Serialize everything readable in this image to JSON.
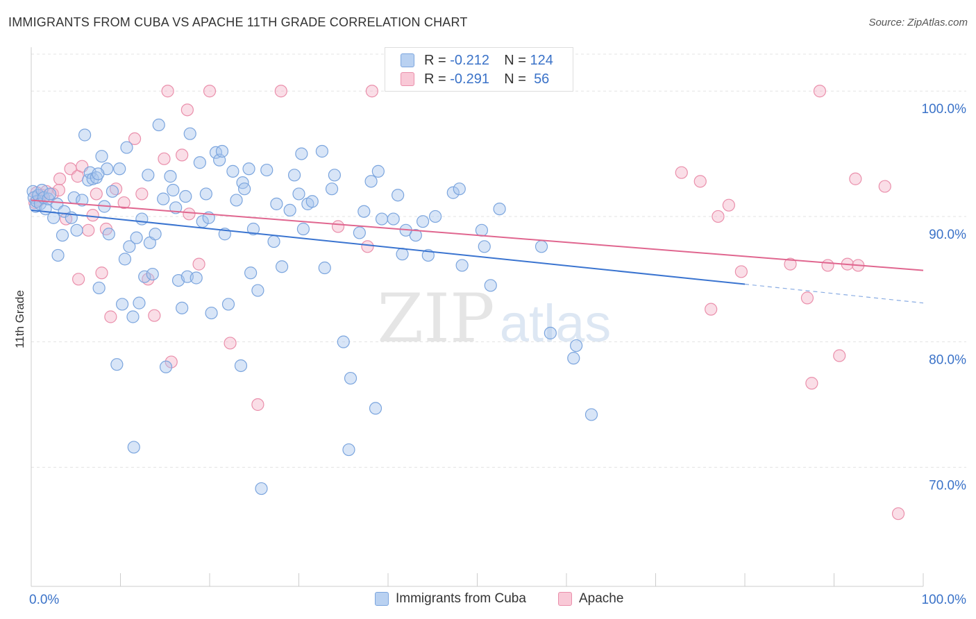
{
  "header": {
    "title": "IMMIGRANTS FROM CUBA VS APACHE 11TH GRADE CORRELATION CHART",
    "source": "Source: ZipAtlas.com"
  },
  "watermark": {
    "zip": "ZIP",
    "atlas": "atlas"
  },
  "legend": {
    "rows": [
      {
        "r_label": "R =",
        "r_value": "-0.212",
        "n_label": "N =",
        "n_value": "124"
      },
      {
        "r_label": "R =",
        "r_value": "-0.291",
        "n_label": "N =",
        "n_value": "56"
      }
    ]
  },
  "bottom_legend": {
    "series1": "Immigrants from Cuba",
    "series2": "Apache"
  },
  "colors": {
    "blue_fill": "#a9c6ee",
    "blue_stroke": "#7ba5de",
    "blue_line": "#3a74d0",
    "pink_fill": "#f5b6c9",
    "pink_stroke": "#ea8fab",
    "pink_line": "#e0668f",
    "tick_text": "#3a72c8",
    "grid": "#e3e3e3"
  },
  "chart_data": {
    "type": "scatter",
    "ylabel": "11th Grade",
    "xlabel": "",
    "xlim": [
      0,
      100
    ],
    "ylim": [
      60.5,
      103.5
    ],
    "x_tick_labels": [
      "0.0%",
      "100.0%"
    ],
    "y_ticks": [
      70,
      80,
      90,
      100
    ],
    "y_tick_labels": [
      "70.0%",
      "80.0%",
      "90.0%",
      "100.0%"
    ],
    "grid": true,
    "series": [
      {
        "name": "Immigrants from Cuba",
        "color": "#a9c6ee",
        "trend": {
          "x0": 0,
          "y0": 90.5,
          "x1": 80,
          "y1": 84.6,
          "dashed_to_x": 100,
          "dashed_to_y": 83.1
        },
        "points": [
          [
            0.2,
            92.0
          ],
          [
            0.3,
            91.5
          ],
          [
            0.5,
            90.8
          ],
          [
            0.6,
            91.2
          ],
          [
            0.8,
            91.7
          ],
          [
            1.0,
            91.0
          ],
          [
            1.2,
            92.1
          ],
          [
            1.4,
            91.5
          ],
          [
            1.6,
            90.6
          ],
          [
            1.9,
            91.4
          ],
          [
            2.1,
            91.8
          ],
          [
            2.5,
            89.9
          ],
          [
            2.9,
            91.0
          ],
          [
            3.0,
            86.9
          ],
          [
            3.5,
            88.5
          ],
          [
            3.7,
            90.4
          ],
          [
            4.5,
            89.9
          ],
          [
            4.8,
            91.5
          ],
          [
            5.1,
            88.9
          ],
          [
            5.7,
            91.3
          ],
          [
            6.0,
            96.5
          ],
          [
            6.4,
            92.9
          ],
          [
            6.6,
            93.5
          ],
          [
            6.9,
            93.0
          ],
          [
            7.3,
            93.1
          ],
          [
            7.6,
            84.3
          ],
          [
            7.9,
            94.8
          ],
          [
            8.2,
            90.8
          ],
          [
            8.5,
            93.8
          ],
          [
            8.7,
            88.6
          ],
          [
            9.1,
            92.0
          ],
          [
            9.6,
            78.2
          ],
          [
            9.9,
            93.8
          ],
          [
            10.2,
            83.0
          ],
          [
            10.5,
            86.6
          ],
          [
            10.7,
            95.5
          ],
          [
            11.0,
            87.6
          ],
          [
            11.4,
            82.0
          ],
          [
            11.8,
            88.3
          ],
          [
            12.1,
            83.1
          ],
          [
            12.4,
            89.8
          ],
          [
            12.7,
            85.2
          ],
          [
            13.1,
            93.3
          ],
          [
            13.3,
            87.9
          ],
          [
            13.6,
            85.4
          ],
          [
            13.9,
            88.6
          ],
          [
            14.3,
            97.3
          ],
          [
            14.8,
            91.4
          ],
          [
            15.1,
            78.0
          ],
          [
            15.6,
            93.2
          ],
          [
            15.9,
            92.1
          ],
          [
            16.2,
            90.7
          ],
          [
            16.5,
            84.9
          ],
          [
            16.9,
            82.7
          ],
          [
            17.3,
            91.6
          ],
          [
            17.5,
            85.2
          ],
          [
            17.8,
            96.6
          ],
          [
            18.5,
            85.1
          ],
          [
            18.9,
            94.3
          ],
          [
            19.2,
            89.6
          ],
          [
            19.6,
            91.8
          ],
          [
            19.9,
            89.9
          ],
          [
            20.2,
            82.3
          ],
          [
            20.7,
            95.1
          ],
          [
            21.1,
            94.5
          ],
          [
            21.4,
            95.2
          ],
          [
            21.7,
            88.6
          ],
          [
            22.1,
            83.0
          ],
          [
            22.6,
            93.6
          ],
          [
            23.0,
            91.3
          ],
          [
            23.5,
            78.1
          ],
          [
            23.7,
            92.7
          ],
          [
            23.9,
            92.2
          ],
          [
            24.4,
            93.8
          ],
          [
            24.6,
            85.5
          ],
          [
            24.9,
            89.0
          ],
          [
            25.4,
            84.1
          ],
          [
            25.8,
            68.3
          ],
          [
            26.4,
            93.7
          ],
          [
            27.2,
            88.0
          ],
          [
            27.5,
            91.0
          ],
          [
            28.1,
            86.0
          ],
          [
            29.0,
            90.5
          ],
          [
            29.5,
            93.3
          ],
          [
            30.0,
            91.8
          ],
          [
            30.3,
            95.0
          ],
          [
            30.5,
            89.0
          ],
          [
            31.0,
            91.0
          ],
          [
            31.5,
            91.2
          ],
          [
            32.6,
            95.2
          ],
          [
            32.9,
            85.9
          ],
          [
            33.7,
            92.2
          ],
          [
            34.0,
            93.3
          ],
          [
            35.0,
            80.0
          ],
          [
            35.6,
            71.4
          ],
          [
            35.8,
            77.1
          ],
          [
            36.8,
            88.7
          ],
          [
            37.3,
            90.4
          ],
          [
            38.1,
            92.8
          ],
          [
            38.6,
            74.7
          ],
          [
            38.9,
            93.6
          ],
          [
            39.3,
            89.8
          ],
          [
            40.6,
            89.8
          ],
          [
            41.1,
            91.7
          ],
          [
            41.6,
            87.0
          ],
          [
            42.0,
            88.9
          ],
          [
            43.1,
            88.5
          ],
          [
            43.9,
            89.6
          ],
          [
            44.5,
            86.9
          ],
          [
            45.3,
            90.0
          ],
          [
            47.3,
            91.9
          ],
          [
            48.0,
            92.2
          ],
          [
            48.3,
            86.1
          ],
          [
            50.5,
            88.9
          ],
          [
            50.8,
            87.6
          ],
          [
            51.5,
            84.5
          ],
          [
            52.5,
            90.6
          ],
          [
            57.2,
            87.6
          ],
          [
            58.2,
            80.7
          ],
          [
            60.8,
            78.7
          ],
          [
            61.1,
            79.7
          ],
          [
            62.8,
            74.2
          ],
          [
            7.5,
            93.4
          ],
          [
            11.5,
            71.6
          ]
        ]
      },
      {
        "name": "Apache",
        "color": "#f5b6c9",
        "trend": {
          "x0": 0,
          "y0": 91.3,
          "x1": 100,
          "y1": 85.7
        },
        "points": [
          [
            0.4,
            91.1
          ],
          [
            0.6,
            91.9
          ],
          [
            0.9,
            91.3
          ],
          [
            1.2,
            91.7
          ],
          [
            1.7,
            92.0
          ],
          [
            2.4,
            91.8
          ],
          [
            3.2,
            93.0
          ],
          [
            3.9,
            89.8
          ],
          [
            4.4,
            93.8
          ],
          [
            5.2,
            93.2
          ],
          [
            5.3,
            85.0
          ],
          [
            5.7,
            94.0
          ],
          [
            6.4,
            88.9
          ],
          [
            6.9,
            90.1
          ],
          [
            7.3,
            91.8
          ],
          [
            7.9,
            85.5
          ],
          [
            8.4,
            89.0
          ],
          [
            8.9,
            82.0
          ],
          [
            9.5,
            92.2
          ],
          [
            10.4,
            91.1
          ],
          [
            11.6,
            96.2
          ],
          [
            12.4,
            91.8
          ],
          [
            13.1,
            85.0
          ],
          [
            13.8,
            82.1
          ],
          [
            14.9,
            94.6
          ],
          [
            15.3,
            100.0
          ],
          [
            15.7,
            78.4
          ],
          [
            16.9,
            94.9
          ],
          [
            17.5,
            98.5
          ],
          [
            17.7,
            90.2
          ],
          [
            18.8,
            86.2
          ],
          [
            20.0,
            100.0
          ],
          [
            22.3,
            79.9
          ],
          [
            25.4,
            75.0
          ],
          [
            28.0,
            100.0
          ],
          [
            34.4,
            89.2
          ],
          [
            37.7,
            87.6
          ],
          [
            38.2,
            100.0
          ],
          [
            72.9,
            93.5
          ],
          [
            75.0,
            92.8
          ],
          [
            76.2,
            82.6
          ],
          [
            77.0,
            90.0
          ],
          [
            78.2,
            90.9
          ],
          [
            79.6,
            85.6
          ],
          [
            85.1,
            86.2
          ],
          [
            87.0,
            83.5
          ],
          [
            87.5,
            76.7
          ],
          [
            88.4,
            100.0
          ],
          [
            89.3,
            86.1
          ],
          [
            90.6,
            78.9
          ],
          [
            91.5,
            86.2
          ],
          [
            92.4,
            93.0
          ],
          [
            92.7,
            86.1
          ],
          [
            95.7,
            92.4
          ],
          [
            97.2,
            66.3
          ],
          [
            3.1,
            92.1
          ]
        ]
      }
    ]
  }
}
